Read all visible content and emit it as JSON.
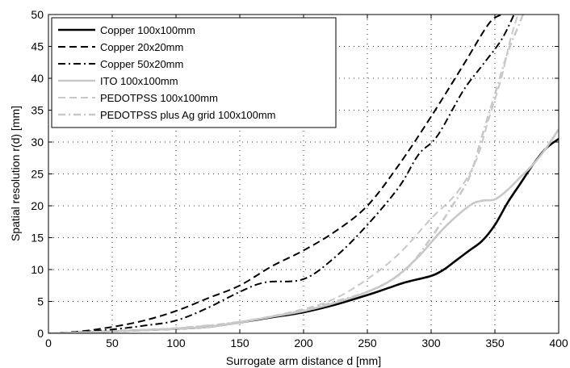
{
  "chart_data": {
    "type": "line",
    "xlabel": "Surrogate arm distance d [mm]",
    "ylabel": "Spatial resolution r(d) [mm]",
    "xlim": [
      0,
      400
    ],
    "ylim": [
      0,
      50
    ],
    "xticks": [
      "0",
      "50",
      "100",
      "150",
      "200",
      "250",
      "300",
      "350",
      "400"
    ],
    "yticks": [
      "0",
      "5",
      "10",
      "15",
      "20",
      "25",
      "30",
      "35",
      "40",
      "45",
      "50"
    ],
    "grid": true,
    "legend_position": "top-left",
    "series": [
      {
        "name": "Copper 100x100mm",
        "color": "#000000",
        "dash": "solid",
        "width": 2.6,
        "x": [
          0,
          25,
          50,
          75,
          100,
          125,
          150,
          175,
          200,
          225,
          250,
          265,
          280,
          300,
          310,
          320,
          330,
          340,
          350,
          360,
          370,
          380,
          390,
          400
        ],
        "y": [
          0,
          0.1,
          0.3,
          0.5,
          0.7,
          1.0,
          1.7,
          2.5,
          3.3,
          4.5,
          6.0,
          7.0,
          8.0,
          9.0,
          10.0,
          11.5,
          13.0,
          14.5,
          17.0,
          20.5,
          23.5,
          26.5,
          29.0,
          30.5
        ]
      },
      {
        "name": "Copper 20x20mm",
        "color": "#000000",
        "dash": "long-dash",
        "width": 2.0,
        "x": [
          0,
          25,
          50,
          75,
          100,
          125,
          150,
          175,
          200,
          225,
          250,
          275,
          300,
          325,
          345,
          355
        ],
        "y": [
          0,
          0.3,
          1.0,
          2.0,
          3.5,
          5.5,
          7.5,
          10.5,
          13.0,
          16.0,
          20.0,
          26.5,
          34.0,
          42.0,
          48.5,
          50
        ]
      },
      {
        "name": "Copper 50x20mm",
        "color": "#000000",
        "dash": "dash-dot",
        "width": 2.0,
        "x": [
          0,
          25,
          50,
          75,
          100,
          125,
          150,
          170,
          200,
          225,
          250,
          275,
          290,
          305,
          325,
          340,
          355,
          365
        ],
        "y": [
          0,
          0.2,
          0.6,
          1.2,
          2.0,
          4.0,
          6.5,
          8.0,
          8.5,
          12.0,
          17.0,
          23.0,
          28.0,
          31.0,
          38.0,
          42.0,
          46.0,
          50
        ]
      },
      {
        "name": "ITO 100x100mm",
        "color": "#c8c8c8",
        "dash": "solid",
        "width": 2.6,
        "x": [
          0,
          25,
          50,
          75,
          100,
          125,
          150,
          175,
          200,
          225,
          250,
          270,
          290,
          310,
          330,
          340,
          350,
          360,
          370,
          380,
          390,
          400
        ],
        "y": [
          0,
          0.1,
          0.3,
          0.5,
          0.7,
          1.0,
          1.7,
          2.6,
          3.5,
          4.8,
          6.5,
          8.5,
          12.0,
          16.5,
          20.0,
          20.8,
          21.0,
          22.5,
          24.5,
          26.5,
          29.0,
          32.0
        ]
      },
      {
        "name": "PEDOTPSS 100x100mm",
        "color": "#c8c8c8",
        "dash": "long-dash",
        "width": 2.0,
        "x": [
          0,
          50,
          100,
          150,
          200,
          225,
          250,
          275,
          300,
          320,
          335,
          345,
          355,
          362,
          368
        ],
        "y": [
          0,
          0.3,
          0.8,
          1.8,
          3.8,
          5.5,
          8.5,
          12.5,
          18.0,
          22.0,
          27.0,
          33.5,
          40.0,
          46.0,
          50
        ]
      },
      {
        "name": "PEDOTPSS plus Ag grid 100x100mm",
        "color": "#c8c8c8",
        "dash": "dash-dot",
        "width": 2.6,
        "x": [
          0,
          50,
          100,
          150,
          200,
          225,
          250,
          270,
          285,
          300,
          315,
          330,
          340,
          350,
          360,
          368,
          372
        ],
        "y": [
          0,
          0.3,
          0.8,
          1.8,
          3.6,
          5.0,
          6.5,
          8.5,
          11.0,
          15.0,
          19.5,
          24.5,
          31.0,
          37.5,
          44.0,
          48.0,
          50
        ]
      }
    ]
  }
}
